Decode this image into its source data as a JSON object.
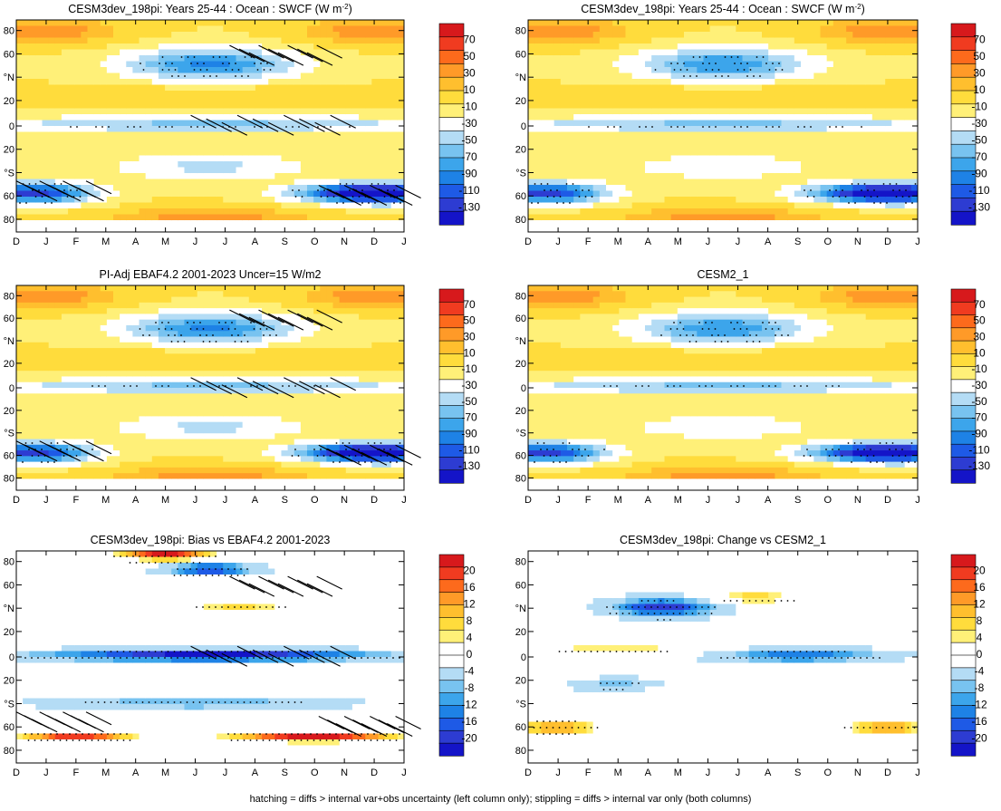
{
  "caption": "hatching = diffs > internal var+obs uncertainty (left column only); stippling = diffs > internal var only (both columns)",
  "chart_data": [
    {
      "type": "heatmap",
      "title": "CESM3dev_198pi: Years 25-44 : Ocean : SWCF (W m",
      "title_sup": "-2",
      "title_tail": ")",
      "x_ticklabels": [
        "D",
        "J",
        "F",
        "M",
        "A",
        "M",
        "J",
        "J",
        "A",
        "S",
        "O",
        "N",
        "D",
        "J"
      ],
      "y_ticklabels": [
        "80",
        "60",
        "°N",
        "20",
        "0",
        "20",
        "°S",
        "60",
        "80"
      ],
      "colorbar_labels": [
        "70",
        "50",
        "30",
        "10",
        "-10",
        "-30",
        "-50",
        "-70",
        "-90",
        "-110",
        "-130"
      ],
      "colorbar_colors": [
        "#d7191c",
        "#f03b20",
        "#fd6a1c",
        "#ff9a28",
        "#ffbf2e",
        "#ffdc3c",
        "#fff078",
        "#ffffff",
        "#b4dcf5",
        "#78c3f0",
        "#3ca5eb",
        "#1e82e6",
        "#1e5ae6",
        "#2d3cd2",
        "#1414c8"
      ],
      "hatching": true
    },
    {
      "type": "heatmap",
      "title": "CESM3dev_198pi: Years 25-44 : Ocean : SWCF (W m",
      "title_sup": "-2",
      "title_tail": ")",
      "x_ticklabels": [
        "D",
        "J",
        "F",
        "M",
        "A",
        "M",
        "J",
        "J",
        "A",
        "S",
        "O",
        "N",
        "D",
        "J"
      ],
      "y_ticklabels": [
        "80",
        "60",
        "°N",
        "20",
        "0",
        "20",
        "°S",
        "60",
        "80"
      ],
      "colorbar_labels": [
        "70",
        "50",
        "30",
        "10",
        "-10",
        "-30",
        "-50",
        "-70",
        "-90",
        "-110",
        "-130"
      ],
      "hatching": false
    },
    {
      "type": "heatmap",
      "title": "PI-Adj EBAF4.2 2001-2023 Uncer=15 W/m2",
      "x_ticklabels": [
        "D",
        "J",
        "F",
        "M",
        "A",
        "M",
        "J",
        "J",
        "A",
        "S",
        "O",
        "N",
        "D",
        "J"
      ],
      "y_ticklabels": [
        "80",
        "60",
        "°N",
        "20",
        "0",
        "20",
        "°S",
        "60",
        "80"
      ],
      "colorbar_labels": [
        "70",
        "50",
        "30",
        "10",
        "-10",
        "-30",
        "-50",
        "-70",
        "-90",
        "-110",
        "-130"
      ],
      "hatching": true
    },
    {
      "type": "heatmap",
      "title": "CESM2_1",
      "x_ticklabels": [
        "D",
        "J",
        "F",
        "M",
        "A",
        "M",
        "J",
        "J",
        "A",
        "S",
        "O",
        "N",
        "D",
        "J"
      ],
      "y_ticklabels": [
        "80",
        "60",
        "°N",
        "20",
        "0",
        "20",
        "°S",
        "60",
        "80"
      ],
      "colorbar_labels": [
        "70",
        "50",
        "30",
        "10",
        "-10",
        "-30",
        "-50",
        "-70",
        "-90",
        "-110",
        "-130"
      ],
      "hatching": false
    },
    {
      "type": "heatmap",
      "title": "CESM3dev_198pi: Bias vs EBAF4.2 2001-2023",
      "x_ticklabels": [
        "D",
        "J",
        "F",
        "M",
        "A",
        "M",
        "J",
        "J",
        "A",
        "S",
        "O",
        "N",
        "D",
        "J"
      ],
      "y_ticklabels": [
        "80",
        "60",
        "°N",
        "20",
        "0",
        "20",
        "°S",
        "60",
        "80"
      ],
      "colorbar_labels": [
        "20",
        "16",
        "12",
        "8",
        "4",
        "0",
        "-4",
        "-8",
        "-12",
        "-16",
        "-20"
      ],
      "hatching": true
    },
    {
      "type": "heatmap",
      "title": "CESM3dev_198pi: Change vs CESM2_1",
      "x_ticklabels": [
        "D",
        "J",
        "F",
        "M",
        "A",
        "M",
        "J",
        "J",
        "A",
        "S",
        "O",
        "N",
        "D",
        "J"
      ],
      "y_ticklabels": [
        "80",
        "60",
        "°N",
        "20",
        "0",
        "20",
        "°S",
        "60",
        "80"
      ],
      "colorbar_labels": [
        "20",
        "16",
        "12",
        "8",
        "4",
        "0",
        "-4",
        "-8",
        "-12",
        "-16",
        "-20"
      ],
      "hatching": false
    }
  ]
}
